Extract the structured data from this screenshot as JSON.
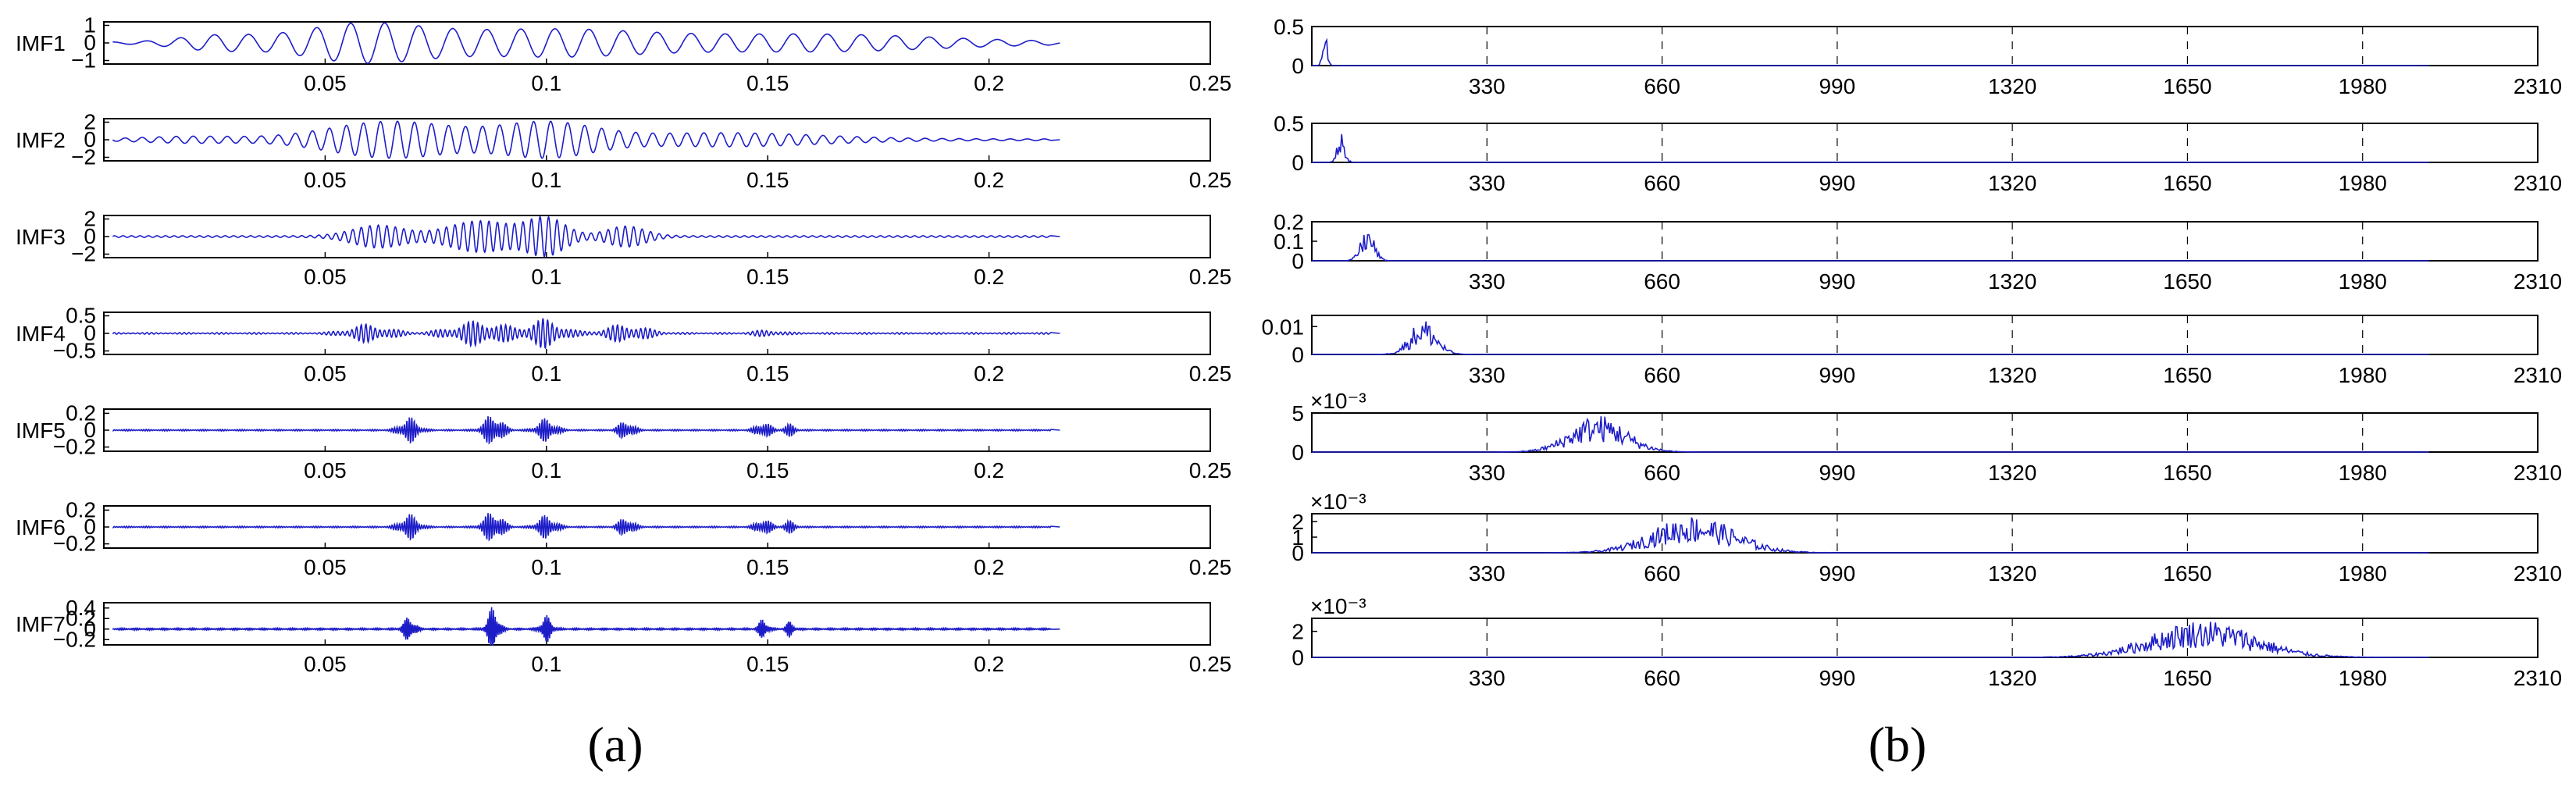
{
  "captions": {
    "left": "(a)",
    "right": "(b)"
  },
  "colors": {
    "signal": "#1d1dc8",
    "axis": "#000000",
    "grid": "#000000"
  },
  "chart_data": [
    {
      "type": "line",
      "panel": "a",
      "xlim": [
        0,
        0.25
      ],
      "xticks": [
        "0.05",
        "0.1",
        "0.15",
        "0.2",
        "0.25"
      ],
      "xtick_values": [
        0.05,
        0.1,
        0.15,
        0.2,
        0.25
      ],
      "signal_end": 0.214,
      "grid": false,
      "rows": [
        {
          "name": "IMF1",
          "ylim": [
            -1.2,
            1.2
          ],
          "yticks": [
            "1",
            "0",
            "−1"
          ],
          "ytick_values": [
            1,
            0,
            -1
          ],
          "freq": 130,
          "bursts": [
            [
              0.025,
              0.012,
              0.35
            ],
            [
              0.058,
              0.02,
              1.0
            ],
            [
              0.1,
              0.03,
              0.7
            ],
            [
              0.16,
              0.04,
              0.45
            ]
          ]
        },
        {
          "name": "IMF2",
          "ylim": [
            -2.4,
            2.4
          ],
          "yticks": [
            "2",
            "0",
            "−2"
          ],
          "ytick_values": [
            2,
            0,
            -2
          ],
          "freq": 260,
          "bursts": [
            [
              0.02,
              0.015,
              0.3
            ],
            [
              0.065,
              0.02,
              2.0
            ],
            [
              0.1,
              0.015,
              1.8
            ],
            [
              0.14,
              0.03,
              0.7
            ]
          ]
        },
        {
          "name": "IMF3",
          "ylim": [
            -2.4,
            2.4
          ],
          "yticks": [
            "2",
            "0",
            "−2"
          ],
          "ytick_values": [
            2,
            0,
            -2
          ],
          "freq": 520,
          "bursts": [
            [
              0.062,
              0.008,
              1.2
            ],
            [
              0.085,
              0.01,
              1.7
            ],
            [
              0.1,
              0.006,
              2.0
            ],
            [
              0.118,
              0.006,
              1.1
            ]
          ]
        },
        {
          "name": "IMF4",
          "ylim": [
            -0.6,
            0.6
          ],
          "yticks": [
            "0.5",
            "0",
            "−0.5"
          ],
          "ytick_values": [
            0.5,
            0,
            -0.5
          ],
          "freq": 950,
          "bursts": [
            [
              0.06,
              0.006,
              0.25
            ],
            [
              0.085,
              0.008,
              0.35
            ],
            [
              0.1,
              0.005,
              0.4
            ],
            [
              0.118,
              0.006,
              0.25
            ],
            [
              0.15,
              0.004,
              0.08
            ]
          ]
        },
        {
          "name": "IMF5",
          "ylim": [
            -0.25,
            0.25
          ],
          "yticks": [
            "0.2",
            "0",
            "−0.2"
          ],
          "ytick_values": [
            0.2,
            0,
            -0.2
          ],
          "freq": 1800,
          "bursts": [
            [
              0.069,
              0.0025,
              0.15
            ],
            [
              0.088,
              0.0025,
              0.2
            ],
            [
              0.1,
              0.0025,
              0.14
            ],
            [
              0.118,
              0.002,
              0.12
            ],
            [
              0.149,
              0.002,
              0.1
            ],
            [
              0.155,
              0.0015,
              0.07
            ]
          ]
        },
        {
          "name": "IMF6",
          "ylim": [
            -0.25,
            0.25
          ],
          "yticks": [
            "0.2",
            "0",
            "−0.2"
          ],
          "ytick_values": [
            0.2,
            0,
            -0.2
          ],
          "freq": 1800,
          "bursts": [
            [
              0.069,
              0.0025,
              0.15
            ],
            [
              0.088,
              0.0025,
              0.2
            ],
            [
              0.1,
              0.0025,
              0.14
            ],
            [
              0.118,
              0.002,
              0.12
            ],
            [
              0.149,
              0.002,
              0.1
            ],
            [
              0.155,
              0.0015,
              0.07
            ]
          ]
        },
        {
          "name": "IMF7",
          "ylim": [
            -0.3,
            0.5
          ],
          "yticks": [
            "0.4",
            "0.2",
            "0",
            "−0.2"
          ],
          "ytick_values": [
            0.4,
            0.2,
            0,
            -0.2
          ],
          "freq": 2400,
          "bursts": [
            [
              0.069,
              0.0015,
              0.25
            ],
            [
              0.088,
              0.0015,
              0.45
            ],
            [
              0.1,
              0.0015,
              0.25
            ],
            [
              0.149,
              0.0012,
              0.2
            ],
            [
              0.155,
              0.001,
              0.15
            ]
          ]
        }
      ]
    },
    {
      "type": "line",
      "panel": "b",
      "xlim": [
        0,
        2310
      ],
      "xticks": [
        "330",
        "660",
        "990",
        "1320",
        "1650",
        "1980",
        "2310"
      ],
      "xtick_values": [
        330,
        660,
        990,
        1320,
        1650,
        1980,
        2310
      ],
      "signal_end": 2105,
      "grid": true,
      "rows": [
        {
          "ylim": [
            0,
            0.5
          ],
          "yticks": [
            "0.5",
            "0"
          ],
          "ytick_values": [
            0.5,
            0
          ],
          "exponent": "",
          "peak_center": 25,
          "peak_width": 6,
          "peak_amp": 0.5
        },
        {
          "ylim": [
            0,
            0.5
          ],
          "yticks": [
            "0.5",
            "0"
          ],
          "ytick_values": [
            0.5,
            0
          ],
          "exponent": "",
          "peak_center": 55,
          "peak_width": 10,
          "peak_amp": 0.38
        },
        {
          "ylim": [
            0,
            0.2
          ],
          "yticks": [
            "0.2",
            "0.1",
            "0"
          ],
          "ytick_values": [
            0.2,
            0.1,
            0
          ],
          "exponent": "",
          "peak_center": 105,
          "peak_width": 18,
          "peak_amp": 0.17
        },
        {
          "ylim": [
            0,
            0.014
          ],
          "yticks": [
            "0.01",
            "0"
          ],
          "ytick_values": [
            0.01,
            0
          ],
          "exponent": "",
          "peak_center": 210,
          "peak_width": 35,
          "peak_amp": 0.013
        },
        {
          "ylim": [
            0,
            5
          ],
          "yticks": [
            "5",
            "0"
          ],
          "ytick_values": [
            5,
            0
          ],
          "exponent": "×10⁻³",
          "peak_center": 540,
          "peak_width": 75,
          "peak_amp": 4.8
        },
        {
          "ylim": [
            0,
            2.5
          ],
          "yticks": [
            "2",
            "1",
            "0"
          ],
          "ytick_values": [
            2,
            1,
            0
          ],
          "exponent": "×10⁻³",
          "peak_center": 720,
          "peak_width": 110,
          "peak_amp": 2.4
        },
        {
          "ylim": [
            0,
            3
          ],
          "yticks": [
            "2",
            "0"
          ],
          "ytick_values": [
            2,
            0
          ],
          "exponent": "×10⁻³",
          "peak_center": 1680,
          "peak_width": 140,
          "peak_amp": 2.9
        }
      ]
    }
  ]
}
